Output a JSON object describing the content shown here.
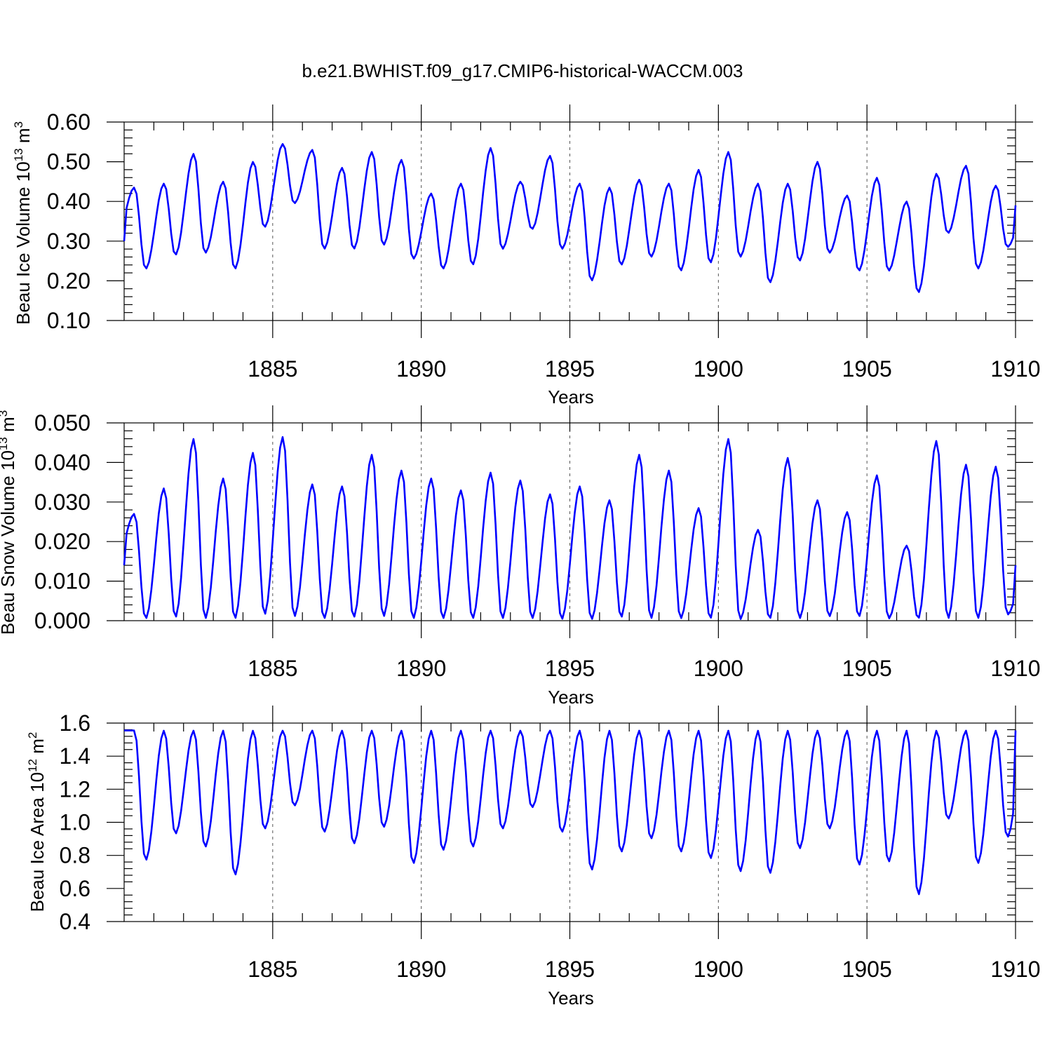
{
  "title": "b.e21.BWHIST.f09_g17.CMIP6-historical-WACCM.003",
  "colors": {
    "line": "#0000ff",
    "axis": "#000000",
    "grid": "#555555"
  },
  "chart_data": [
    {
      "type": "line",
      "ylabel": "Beau Ice Volume 10^13 m^3",
      "ylabel_parts": {
        "base": "Beau Ice Volume 10",
        "exp1": "13",
        "mid": " m",
        "exp2": "3"
      },
      "xlabel": "Years",
      "xlim": [
        1880,
        1910
      ],
      "ylim": [
        0.1,
        0.6
      ],
      "yticks": [
        0.1,
        0.2,
        0.3,
        0.4,
        0.5,
        0.6
      ],
      "ytick_labels": [
        "0.10",
        "0.20",
        "0.30",
        "0.40",
        "0.50",
        "0.60"
      ],
      "xticks": [
        1885,
        1890,
        1895,
        1900,
        1905,
        1910
      ],
      "xtick_labels": [
        "1885",
        "1890",
        "1895",
        "1900",
        "1905",
        "1910"
      ],
      "series": [
        {
          "name": "Beau Ice Volume",
          "mins": [
            0.23,
            0.265,
            0.27,
            0.23,
            0.335,
            0.395,
            0.28,
            0.28,
            0.29,
            0.255,
            0.23,
            0.24,
            0.28,
            0.33,
            0.28,
            0.2,
            0.24,
            0.26,
            0.225,
            0.245,
            0.26,
            0.195,
            0.25,
            0.27,
            0.225,
            0.225,
            0.17,
            0.32,
            0.23,
            0.285
          ],
          "maxs": [
            0.435,
            0.445,
            0.52,
            0.45,
            0.5,
            0.545,
            0.53,
            0.485,
            0.525,
            0.505,
            0.42,
            0.445,
            0.535,
            0.45,
            0.515,
            0.445,
            0.435,
            0.455,
            0.445,
            0.48,
            0.525,
            0.445,
            0.445,
            0.5,
            0.415,
            0.46,
            0.4,
            0.47,
            0.49,
            0.44
          ],
          "start": 0.3,
          "end": 0.39
        }
      ]
    },
    {
      "type": "line",
      "ylabel": "Beau Snow Volume 10^13 m^3",
      "ylabel_parts": {
        "base": "Beau Snow Volume 10",
        "exp1": "13",
        "mid": " m",
        "exp2": "3"
      },
      "xlabel": "Years",
      "xlim": [
        1880,
        1910
      ],
      "ylim": [
        0.0,
        0.05
      ],
      "yticks": [
        0.0,
        0.01,
        0.02,
        0.03,
        0.04,
        0.05
      ],
      "ytick_labels": [
        "0.000",
        "0.010",
        "0.020",
        "0.030",
        "0.040",
        "0.050"
      ],
      "xticks": [
        1885,
        1890,
        1895,
        1900,
        1905,
        1910
      ],
      "xtick_labels": [
        "1885",
        "1890",
        "1895",
        "1900",
        "1905",
        "1910"
      ],
      "series": [
        {
          "name": "Beau Snow Volume",
          "mins": [
            0.0005,
            0.0008,
            0.0005,
            0.0005,
            0.0015,
            0.001,
            0.0005,
            0.0008,
            0.001,
            0.0005,
            0.0005,
            0.0005,
            0.0005,
            0.0005,
            0.0003,
            0.0003,
            0.0008,
            0.0005,
            0.0005,
            0.0005,
            0.0003,
            0.0005,
            0.0005,
            0.001,
            0.001,
            0.0005,
            0.0005,
            0.0005,
            0.0005,
            0.0015
          ],
          "maxs": [
            0.027,
            0.0335,
            0.046,
            0.036,
            0.0425,
            0.0465,
            0.0345,
            0.034,
            0.042,
            0.038,
            0.036,
            0.033,
            0.0375,
            0.0355,
            0.032,
            0.034,
            0.0305,
            0.042,
            0.038,
            0.0285,
            0.046,
            0.023,
            0.0412,
            0.0305,
            0.0275,
            0.0368,
            0.019,
            0.0455,
            0.0395,
            0.039
          ],
          "start": 0.014,
          "end": 0.014
        }
      ]
    },
    {
      "type": "line",
      "ylabel": "Beau Ice Area 10^12 m^2",
      "ylabel_parts": {
        "base": "Beau Ice Area 10",
        "exp1": "12",
        "mid": " m",
        "exp2": "2"
      },
      "xlabel": "Years",
      "xlim": [
        1880,
        1910
      ],
      "ylim": [
        0.4,
        1.6
      ],
      "yticks": [
        0.4,
        0.6,
        0.8,
        1.0,
        1.2,
        1.4,
        1.6
      ],
      "ytick_labels": [
        "0.4",
        "0.6",
        "0.8",
        "1.0",
        "1.2",
        "1.4",
        "1.6"
      ],
      "xticks": [
        1885,
        1890,
        1895,
        1900,
        1905,
        1910
      ],
      "xtick_labels": [
        "1885",
        "1890",
        "1895",
        "1900",
        "1905",
        "1910"
      ],
      "series": [
        {
          "name": "Beau Ice Area",
          "mins": [
            0.77,
            0.93,
            0.85,
            0.68,
            0.96,
            1.1,
            0.94,
            0.87,
            0.97,
            0.75,
            0.83,
            0.85,
            0.96,
            1.09,
            0.94,
            0.71,
            0.82,
            0.9,
            0.82,
            0.78,
            0.7,
            0.69,
            0.84,
            0.96,
            0.74,
            0.76,
            0.56,
            1.02,
            0.75,
            0.91
          ],
          "maxs": [
            1.555,
            1.555,
            1.555,
            1.555,
            1.555,
            1.555,
            1.555,
            1.555,
            1.555,
            1.555,
            1.555,
            1.555,
            1.555,
            1.555,
            1.555,
            1.555,
            1.555,
            1.555,
            1.555,
            1.555,
            1.555,
            1.555,
            1.555,
            1.555,
            1.555,
            1.555,
            1.555,
            1.555,
            1.555,
            1.555
          ],
          "start": 1.555,
          "end": 1.555
        }
      ]
    }
  ]
}
